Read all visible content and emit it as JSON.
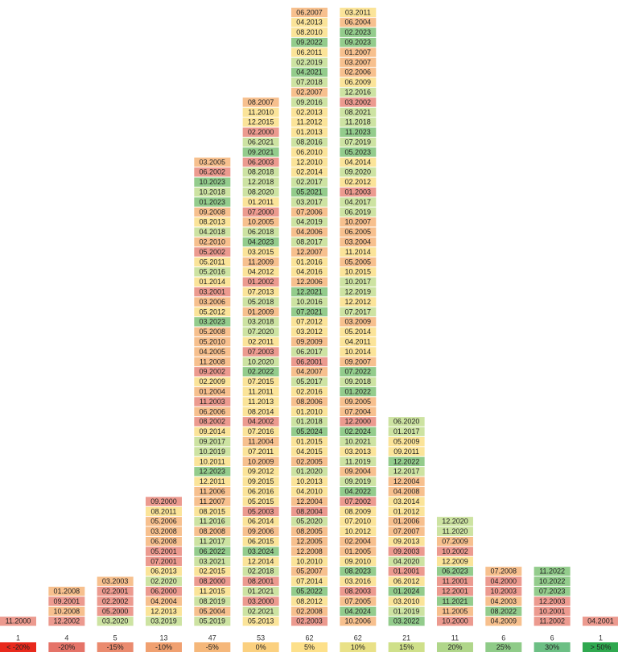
{
  "palette": {
    "r": "#ec9a8f",
    "o": "#f7c08e",
    "y": "#fbe499",
    "l": "#cde3a2",
    "g": "#93cc8c"
  },
  "columns": [
    {
      "count": 1,
      "bucket": "< -20%",
      "color": "#e8291c",
      "cells": [
        "11.2000"
      ],
      "tones": [
        "r"
      ]
    },
    {
      "count": 4,
      "bucket": "-20%",
      "color": "#e57368",
      "cells": [
        "01.2008",
        "09.2001",
        "10.2008",
        "12.2002"
      ],
      "tones": [
        "o",
        "r",
        "o",
        "r"
      ]
    },
    {
      "count": 5,
      "bucket": "-15%",
      "color": "#ea8a6e",
      "cells": [
        "03.2003",
        "02.2001",
        "02.2002",
        "05.2000",
        "03.2020"
      ],
      "tones": [
        "o",
        "r",
        "r",
        "r",
        "l"
      ]
    },
    {
      "count": 13,
      "bucket": "-10%",
      "color": "#f0a070",
      "cells": [
        "09.2000",
        "08.2011",
        "05.2006",
        "03.2008",
        "06.2008",
        "05.2001",
        "07.2001",
        "06.2013",
        "02.2020",
        "06.2000",
        "04.2004",
        "12.2013",
        "03.2019"
      ],
      "tones": [
        "r",
        "y",
        "o",
        "o",
        "o",
        "r",
        "r",
        "y",
        "l",
        "r",
        "o",
        "y",
        "l"
      ]
    },
    {
      "count": 47,
      "bucket": "-5%",
      "color": "#f5b77a",
      "cells": [
        "03.2005",
        "06.2002",
        "10.2023",
        "10.2018",
        "01.2023",
        "09.2008",
        "08.2013",
        "04.2018",
        "02.2010",
        "05.2002",
        "05.2011",
        "05.2016",
        "01.2014",
        "03.2001",
        "03.2006",
        "05.2012",
        "03.2023",
        "05.2008",
        "05.2010",
        "04.2005",
        "11.2008",
        "09.2002",
        "02.2009",
        "01.2004",
        "11.2003",
        "06.2006",
        "08.2002",
        "09.2014",
        "09.2017",
        "10.2019",
        "10.2011",
        "12.2023",
        "12.2011",
        "11.2006",
        "11.2007",
        "08.2015",
        "11.2016",
        "08.2008",
        "11.2017",
        "06.2022",
        "03.2021",
        "02.2015",
        "08.2000",
        "11.2015",
        "08.2019",
        "05.2004",
        "05.2019"
      ],
      "tones": [
        "o",
        "r",
        "g",
        "l",
        "g",
        "o",
        "y",
        "l",
        "o",
        "r",
        "y",
        "l",
        "y",
        "r",
        "o",
        "y",
        "g",
        "o",
        "o",
        "o",
        "o",
        "r",
        "y",
        "o",
        "r",
        "o",
        "r",
        "y",
        "l",
        "l",
        "y",
        "g",
        "y",
        "o",
        "o",
        "y",
        "l",
        "o",
        "l",
        "g",
        "l",
        "y",
        "r",
        "y",
        "l",
        "o",
        "l"
      ]
    },
    {
      "count": 53,
      "bucket": "0%",
      "color": "#fbd07f",
      "cells": [
        "08.2007",
        "11.2010",
        "12.2015",
        "02.2000",
        "06.2021",
        "09.2021",
        "06.2003",
        "08.2018",
        "12.2018",
        "08.2020",
        "01.2011",
        "07.2000",
        "10.2005",
        "06.2018",
        "04.2023",
        "03.2015",
        "11.2009",
        "04.2012",
        "01.2002",
        "07.2013",
        "05.2018",
        "01.2009",
        "03.2018",
        "07.2020",
        "02.2011",
        "07.2003",
        "10.2020",
        "02.2022",
        "07.2015",
        "11.2011",
        "11.2013",
        "08.2014",
        "04.2002",
        "07.2016",
        "11.2004",
        "07.2011",
        "10.2009",
        "09.2012",
        "09.2015",
        "06.2016",
        "05.2015",
        "05.2003",
        "06.2014",
        "09.2006",
        "06.2015",
        "03.2024",
        "12.2014",
        "02.2018",
        "08.2001",
        "01.2021",
        "03.2000",
        "02.2021",
        "05.2013"
      ],
      "tones": [
        "o",
        "y",
        "y",
        "r",
        "l",
        "g",
        "r",
        "l",
        "l",
        "l",
        "y",
        "r",
        "o",
        "l",
        "g",
        "y",
        "o",
        "y",
        "r",
        "y",
        "l",
        "o",
        "l",
        "l",
        "y",
        "r",
        "l",
        "g",
        "y",
        "y",
        "y",
        "y",
        "r",
        "y",
        "o",
        "y",
        "o",
        "y",
        "y",
        "y",
        "y",
        "r",
        "y",
        "o",
        "y",
        "g",
        "y",
        "l",
        "r",
        "l",
        "r",
        "l",
        "y"
      ]
    },
    {
      "count": 62,
      "bucket": "5%",
      "color": "#fde08a",
      "cells": [
        "06.2007",
        "04.2013",
        "08.2010",
        "09.2022",
        "06.2011",
        "02.2019",
        "04.2021",
        "07.2018",
        "02.2007",
        "09.2016",
        "02.2013",
        "11.2012",
        "01.2013",
        "08.2016",
        "06.2010",
        "12.2010",
        "02.2014",
        "02.2017",
        "05.2021",
        "03.2017",
        "07.2006",
        "04.2019",
        "04.2006",
        "08.2017",
        "12.2007",
        "01.2016",
        "04.2016",
        "12.2006",
        "12.2021",
        "10.2016",
        "07.2021",
        "07.2012",
        "03.2012",
        "09.2009",
        "06.2017",
        "06.2001",
        "04.2007",
        "05.2017",
        "02.2016",
        "08.2006",
        "01.2010",
        "01.2018",
        "05.2024",
        "01.2015",
        "04.2015",
        "02.2005",
        "01.2020",
        "10.2013",
        "04.2010",
        "12.2004",
        "08.2004",
        "05.2020",
        "08.2005",
        "12.2005",
        "12.2008",
        "10.2010",
        "05.2007",
        "07.2014",
        "05.2022",
        "08.2012",
        "02.2008",
        "02.2003"
      ],
      "tones": [
        "o",
        "y",
        "y",
        "g",
        "y",
        "l",
        "g",
        "l",
        "o",
        "l",
        "y",
        "y",
        "y",
        "l",
        "y",
        "y",
        "y",
        "l",
        "g",
        "l",
        "o",
        "l",
        "o",
        "l",
        "o",
        "y",
        "y",
        "o",
        "g",
        "l",
        "g",
        "y",
        "y",
        "o",
        "l",
        "r",
        "o",
        "l",
        "y",
        "o",
        "y",
        "l",
        "g",
        "y",
        "y",
        "o",
        "l",
        "y",
        "y",
        "o",
        "r",
        "l",
        "o",
        "o",
        "o",
        "y",
        "o",
        "y",
        "g",
        "y",
        "o",
        "r"
      ]
    },
    {
      "count": 62,
      "bucket": "10%",
      "color": "#e9e187",
      "cells": [
        "03.2011",
        "06.2004",
        "02.2023",
        "09.2023",
        "01.2007",
        "03.2007",
        "02.2006",
        "06.2009",
        "12.2016",
        "03.2002",
        "08.2021",
        "11.2018",
        "11.2023",
        "07.2019",
        "05.2023",
        "04.2014",
        "09.2020",
        "02.2012",
        "01.2003",
        "04.2017",
        "06.2019",
        "10.2007",
        "06.2005",
        "03.2004",
        "11.2014",
        "05.2005",
        "10.2015",
        "10.2017",
        "12.2019",
        "12.2012",
        "07.2017",
        "03.2009",
        "05.2014",
        "04.2011",
        "10.2014",
        "09.2007",
        "07.2022",
        "09.2018",
        "01.2022",
        "09.2005",
        "07.2004",
        "12.2000",
        "02.2024",
        "10.2021",
        "03.2013",
        "11.2019",
        "09.2004",
        "09.2019",
        "04.2022",
        "07.2002",
        "08.2009",
        "07.2010",
        "10.2012",
        "02.2004",
        "01.2005",
        "09.2010",
        "08.2023",
        "03.2016",
        "08.2003",
        "07.2005",
        "04.2024",
        "10.2006"
      ],
      "tones": [
        "y",
        "o",
        "g",
        "g",
        "o",
        "o",
        "o",
        "y",
        "l",
        "r",
        "l",
        "l",
        "g",
        "l",
        "g",
        "y",
        "l",
        "y",
        "r",
        "l",
        "l",
        "o",
        "o",
        "o",
        "y",
        "o",
        "y",
        "l",
        "l",
        "y",
        "l",
        "o",
        "y",
        "y",
        "y",
        "o",
        "g",
        "l",
        "g",
        "o",
        "o",
        "r",
        "g",
        "l",
        "y",
        "l",
        "o",
        "l",
        "g",
        "r",
        "y",
        "y",
        "y",
        "o",
        "o",
        "y",
        "g",
        "y",
        "r",
        "o",
        "g",
        "o"
      ]
    },
    {
      "count": 21,
      "bucket": "15%",
      "color": "#cfe08a",
      "cells": [
        "06.2020",
        "01.2017",
        "05.2009",
        "09.2011",
        "12.2022",
        "12.2017",
        "12.2004",
        "04.2008",
        "03.2014",
        "01.2012",
        "01.2006",
        "07.2007",
        "09.2013",
        "09.2003",
        "04.2020",
        "01.2001",
        "06.2012",
        "01.2024",
        "03.2010",
        "01.2019",
        "03.2022"
      ],
      "tones": [
        "l",
        "l",
        "y",
        "y",
        "g",
        "l",
        "o",
        "o",
        "y",
        "y",
        "o",
        "o",
        "y",
        "r",
        "l",
        "r",
        "y",
        "g",
        "y",
        "l",
        "g"
      ]
    },
    {
      "count": 11,
      "bucket": "20%",
      "color": "#b0d68a",
      "cells": [
        "12.2020",
        "11.2020",
        "07.2009",
        "10.2002",
        "12.2009",
        "06.2023",
        "11.2001",
        "12.2001",
        "11.2021",
        "11.2005",
        "10.2000"
      ],
      "tones": [
        "l",
        "l",
        "o",
        "r",
        "y",
        "g",
        "r",
        "r",
        "g",
        "o",
        "r"
      ]
    },
    {
      "count": 6,
      "bucket": "25%",
      "color": "#8fcb88",
      "cells": [
        "07.2008",
        "04.2000",
        "10.2003",
        "04.2003",
        "08.2022",
        "04.2009"
      ],
      "tones": [
        "o",
        "r",
        "r",
        "o",
        "g",
        "o"
      ]
    },
    {
      "count": 6,
      "bucket": "30%",
      "color": "#6cbf84",
      "cells": [
        "11.2022",
        "10.2022",
        "07.2023",
        "12.2003",
        "10.2001",
        "11.2002"
      ],
      "tones": [
        "g",
        "g",
        "g",
        "r",
        "r",
        "r"
      ]
    },
    {
      "count": 1,
      "bucket": "> 50%",
      "color": "#2fa84f",
      "cells": [
        "04.2001"
      ],
      "tones": [
        "r"
      ]
    }
  ]
}
